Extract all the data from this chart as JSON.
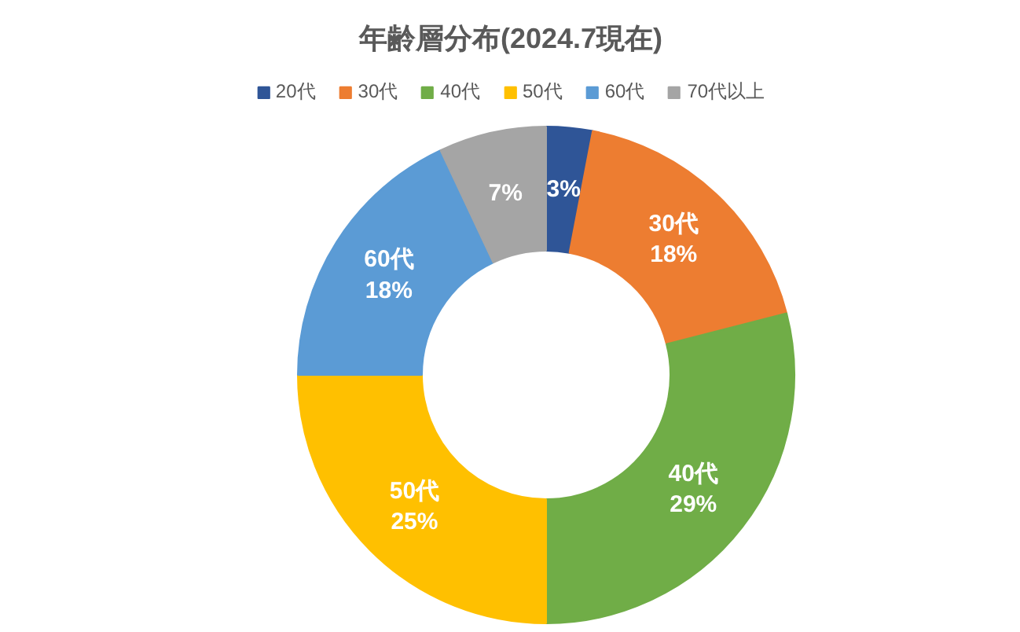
{
  "chart_data": {
    "type": "donut",
    "title": "年齢層分布(2024.7現在)",
    "categories": [
      "20代",
      "30代",
      "40代",
      "50代",
      "60代",
      "70代以上"
    ],
    "values": [
      3,
      18,
      29,
      25,
      18,
      7
    ],
    "colors": [
      "#2f5597",
      "#ed7d31",
      "#70ad47",
      "#ffc000",
      "#5b9bd5",
      "#a5a5a5"
    ],
    "value_labels": [
      "3%",
      "30代\n18%",
      "40代\n29%",
      "50代\n25%",
      "60代\n18%",
      "7%"
    ],
    "legend": "top"
  }
}
